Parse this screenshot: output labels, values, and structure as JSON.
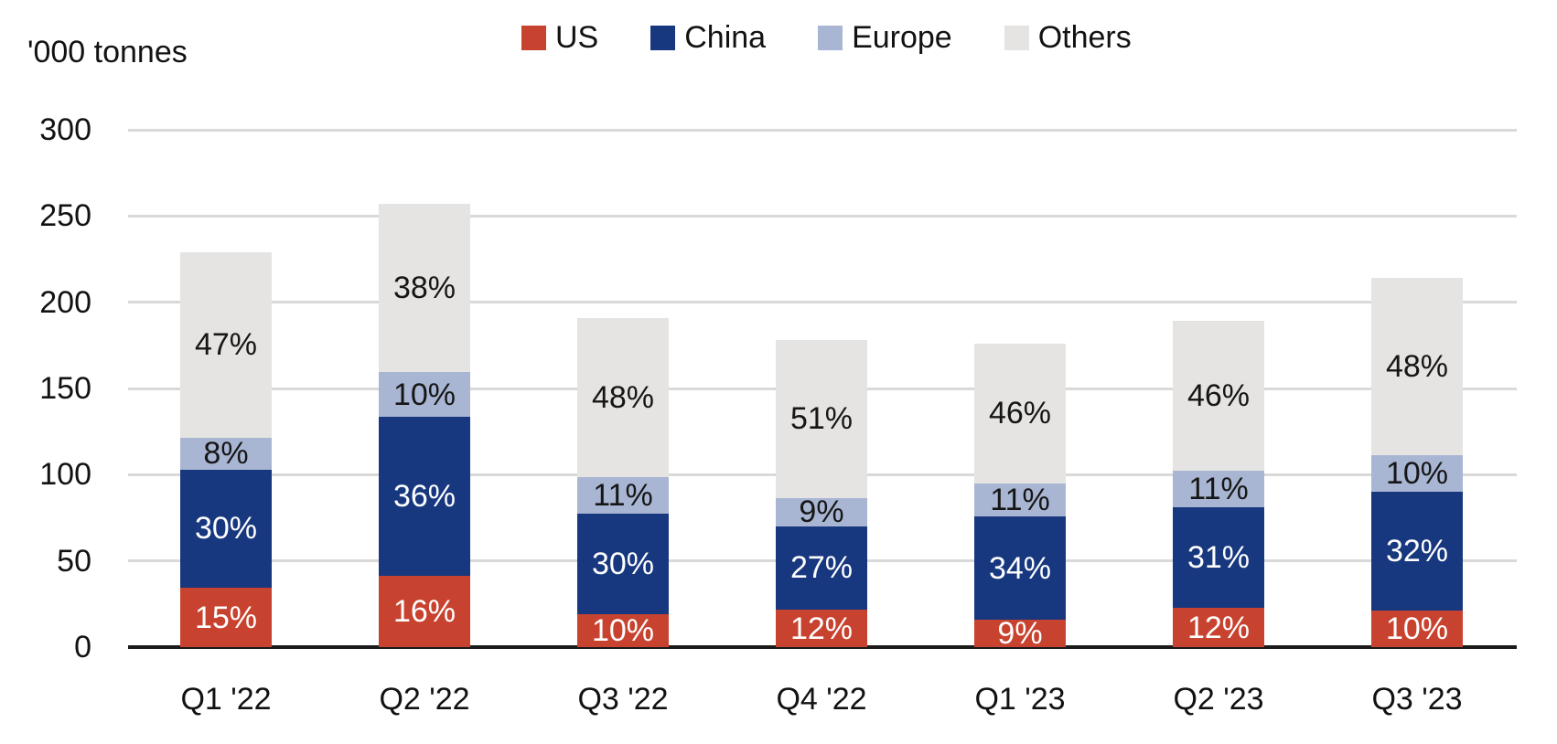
{
  "chart_data": {
    "type": "stacked-bar",
    "title": "",
    "ylabel": "'000 tonnes",
    "categories": [
      "Q1 '22",
      "Q2 '22",
      "Q3 '22",
      "Q4 '22",
      "Q1 '23",
      "Q2 '23",
      "Q3 '23"
    ],
    "series": [
      {
        "name": "US",
        "color": "#C8432F",
        "label_color": "#FFFFFF",
        "pct": [
          15,
          16,
          10,
          12,
          9,
          12,
          10
        ]
      },
      {
        "name": "China",
        "color": "#17377E",
        "label_color": "#FFFFFF",
        "pct": [
          30,
          36,
          30,
          27,
          34,
          31,
          32
        ]
      },
      {
        "name": "Europe",
        "color": "#A9B6D3",
        "label_color": "#161616",
        "pct": [
          8,
          10,
          11,
          9,
          11,
          11,
          10
        ]
      },
      {
        "name": "Others",
        "color": "#E5E4E2",
        "label_color": "#161616",
        "pct": [
          47,
          38,
          48,
          51,
          46,
          46,
          48
        ]
      }
    ],
    "totals_thousand_tonnes": [
      229,
      257,
      193,
      180,
      176,
      189,
      214
    ],
    "ylim": [
      0,
      300
    ],
    "yticks": [
      0,
      50,
      100,
      150,
      200,
      250,
      300
    ],
    "grid": true,
    "legend_position": "top",
    "axis_color": "#1A1A1A",
    "gridline_color": "#D9D9D9",
    "background_color": "#FFFFFF"
  }
}
